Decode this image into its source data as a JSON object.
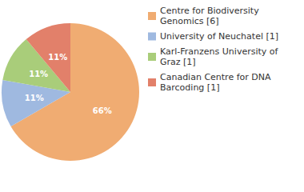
{
  "chart_data": {
    "type": "pie",
    "categories": [
      "Centre for Biodiversity Genomics [6]",
      "University of Neuchatel [1]",
      "Karl-Franzens University of Graz [1]",
      "Canadian Centre for DNA Barcoding [1]"
    ],
    "values": [
      66,
      11,
      11,
      11
    ],
    "value_labels": [
      "66%",
      "11%",
      "11%",
      "11%"
    ],
    "colors": [
      "#f0ac72",
      "#9fb9e0",
      "#a9cd7a",
      "#e2806a"
    ],
    "data_labels": true,
    "legend": "right"
  }
}
